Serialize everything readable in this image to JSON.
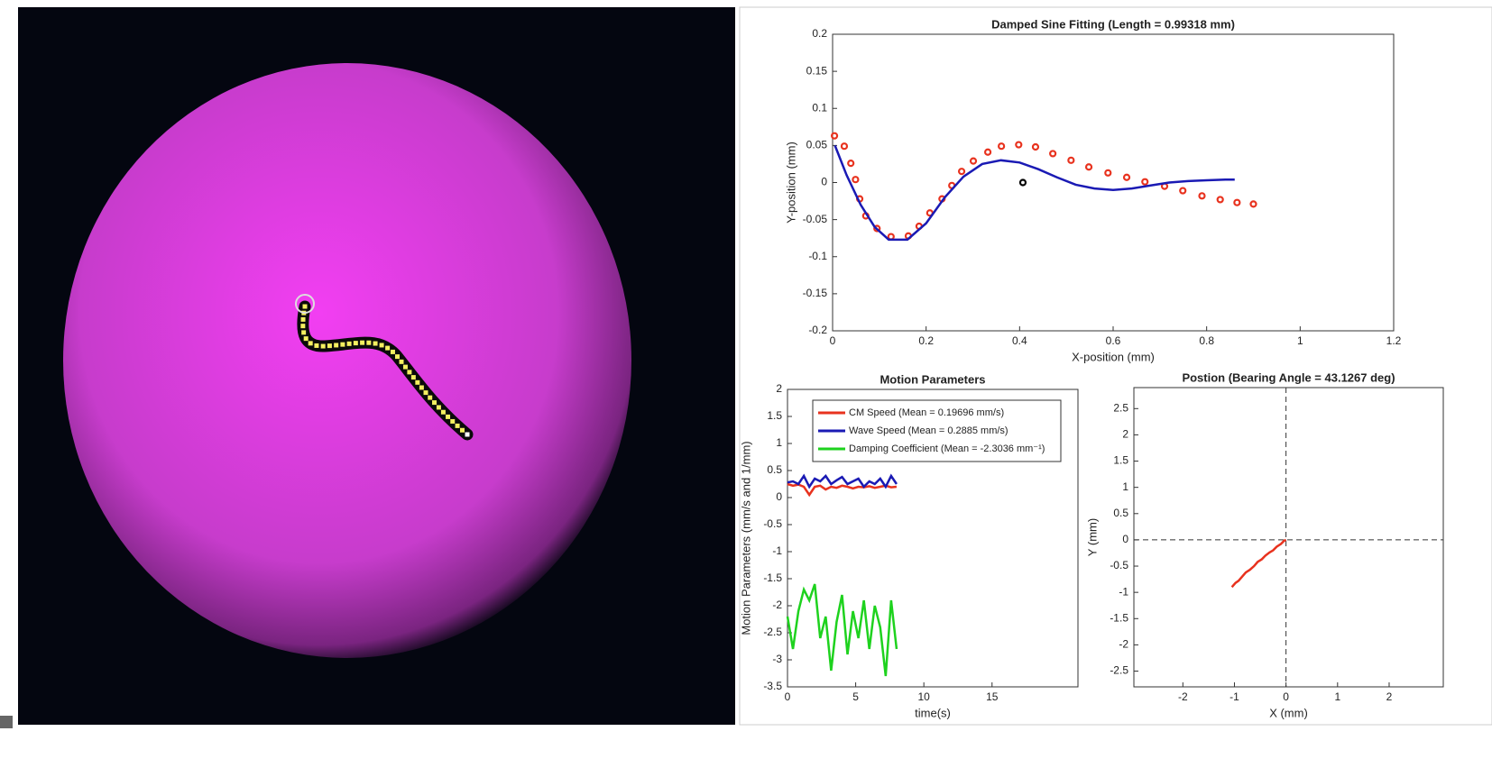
{
  "chart_data": [
    {
      "type": "scatter",
      "title": "Damped Sine Fitting (Length = 0.99318 mm)",
      "x_label": "X-position (mm)",
      "y_label": "Y-position (mm)",
      "xlim": [
        0,
        1.2
      ],
      "xticks": [
        0,
        0.2,
        0.4,
        0.6,
        0.8,
        1,
        1.2
      ],
      "ylim": [
        -0.2,
        0.2
      ],
      "yticks": [
        -0.2,
        -0.15,
        -0.1,
        -0.05,
        0,
        0.05,
        0.1,
        0.15,
        0.2
      ],
      "series": [
        {
          "color": "#e8321e",
          "mode": "markers",
          "x": [
            0.004,
            0.025,
            0.039,
            0.049,
            0.058,
            0.071,
            0.095,
            0.125,
            0.162,
            0.185,
            0.208,
            0.234,
            0.255,
            0.276,
            0.301,
            0.332,
            0.361,
            0.398,
            0.434,
            0.471,
            0.51,
            0.548,
            0.589,
            0.629,
            0.668,
            0.71,
            0.749,
            0.79,
            0.829,
            0.865,
            0.9
          ],
          "y": [
            0.063,
            0.049,
            0.026,
            0.004,
            -0.022,
            -0.045,
            -0.062,
            -0.073,
            -0.072,
            -0.059,
            -0.041,
            -0.022,
            -0.004,
            0.015,
            0.029,
            0.041,
            0.049,
            0.051,
            0.048,
            0.039,
            0.03,
            0.021,
            0.013,
            0.007,
            0.001,
            -0.005,
            -0.011,
            -0.018,
            -0.023,
            -0.027,
            -0.029
          ]
        },
        {
          "color": "#000000",
          "mode": "markers",
          "x": [
            0.407
          ],
          "y": [
            0
          ]
        },
        {
          "color": "#1a1ab4",
          "mode": "line",
          "x": [
            0.005,
            0.03,
            0.06,
            0.09,
            0.12,
            0.16,
            0.2,
            0.24,
            0.28,
            0.32,
            0.36,
            0.4,
            0.44,
            0.48,
            0.52,
            0.56,
            0.6,
            0.64,
            0.68,
            0.72,
            0.76,
            0.8,
            0.84,
            0.86
          ],
          "y": [
            0.05,
            0.01,
            -0.03,
            -0.06,
            -0.077,
            -0.077,
            -0.055,
            -0.02,
            0.008,
            0.025,
            0.03,
            0.027,
            0.018,
            0.007,
            -0.003,
            -0.008,
            -0.01,
            -0.008,
            -0.004,
            0,
            0.002,
            0.003,
            0.004,
            0.004
          ]
        }
      ]
    },
    {
      "type": "line",
      "title": "Motion Parameters",
      "x_label": "time(s)",
      "y_label": "Motion Parameters (mm/s and 1/mm)",
      "xlim": [
        0,
        21.3
      ],
      "xticks": [
        0,
        5,
        10,
        15
      ],
      "ylim": [
        -3.5,
        2
      ],
      "yticks": [
        -3.5,
        -3,
        -2.5,
        -2,
        -1.5,
        -1,
        -0.5,
        0,
        0.5,
        1,
        1.5,
        2
      ],
      "x": [
        0,
        0.4,
        0.8,
        1.2,
        1.6,
        2,
        2.4,
        2.8,
        3.2,
        3.6,
        4,
        4.4,
        4.8,
        5.2,
        5.6,
        6,
        6.4,
        6.8,
        7.2,
        7.6,
        8
      ],
      "series": [
        {
          "name": "CM Speed (Mean = 0.19696 mm/s)",
          "color": "#e8321e",
          "values": [
            0.25,
            0.22,
            0.24,
            0.2,
            0.05,
            0.2,
            0.22,
            0.15,
            0.2,
            0.18,
            0.22,
            0.2,
            0.17,
            0.2,
            0.19,
            0.21,
            0.18,
            0.2,
            0.22,
            0.19,
            0.2
          ]
        },
        {
          "name": "Wave Speed (Mean = 0.2885 mm/s)",
          "color": "#1a1ab4",
          "values": [
            0.28,
            0.3,
            0.25,
            0.4,
            0.2,
            0.35,
            0.3,
            0.4,
            0.25,
            0.32,
            0.38,
            0.25,
            0.3,
            0.35,
            0.2,
            0.3,
            0.25,
            0.35,
            0.2,
            0.4,
            0.25
          ]
        },
        {
          "name": "Damping Coefficient (Mean = -2.3036 mm⁻¹)",
          "color": "#1ed21e",
          "values": [
            -2.2,
            -2.8,
            -2.1,
            -1.7,
            -1.9,
            -1.6,
            -2.6,
            -2.2,
            -3.2,
            -2.3,
            -1.8,
            -2.9,
            -2.1,
            -2.6,
            -1.9,
            -2.8,
            -2,
            -2.4,
            -3.3,
            -1.9,
            -2.8
          ]
        }
      ]
    },
    {
      "type": "scatter",
      "title": "Postion (Bearing Angle = 43.1267 deg)",
      "x_label": "X (mm)",
      "y_label": "Y (mm)",
      "xlim": [
        -2.95,
        3.05
      ],
      "xticks": [
        -2,
        -1,
        0,
        1,
        2
      ],
      "ylim": [
        -2.8,
        2.9
      ],
      "yticks": [
        -2.5,
        -2,
        -1.5,
        -1,
        -0.5,
        0,
        0.5,
        1,
        1.5,
        2,
        2.5
      ],
      "crosshair": true,
      "series": [
        {
          "color": "#e8321e",
          "mode": "line",
          "x": [
            -1.05,
            -0.98,
            -0.92,
            -0.85,
            -0.78,
            -0.7,
            -0.62,
            -0.55,
            -0.47,
            -0.4,
            -0.32,
            -0.25,
            -0.18,
            -0.1,
            -0.04,
            0
          ],
          "y": [
            -0.9,
            -0.82,
            -0.78,
            -0.7,
            -0.62,
            -0.57,
            -0.5,
            -0.42,
            -0.37,
            -0.3,
            -0.24,
            -0.2,
            -0.13,
            -0.08,
            -0.02,
            0
          ]
        }
      ]
    }
  ]
}
